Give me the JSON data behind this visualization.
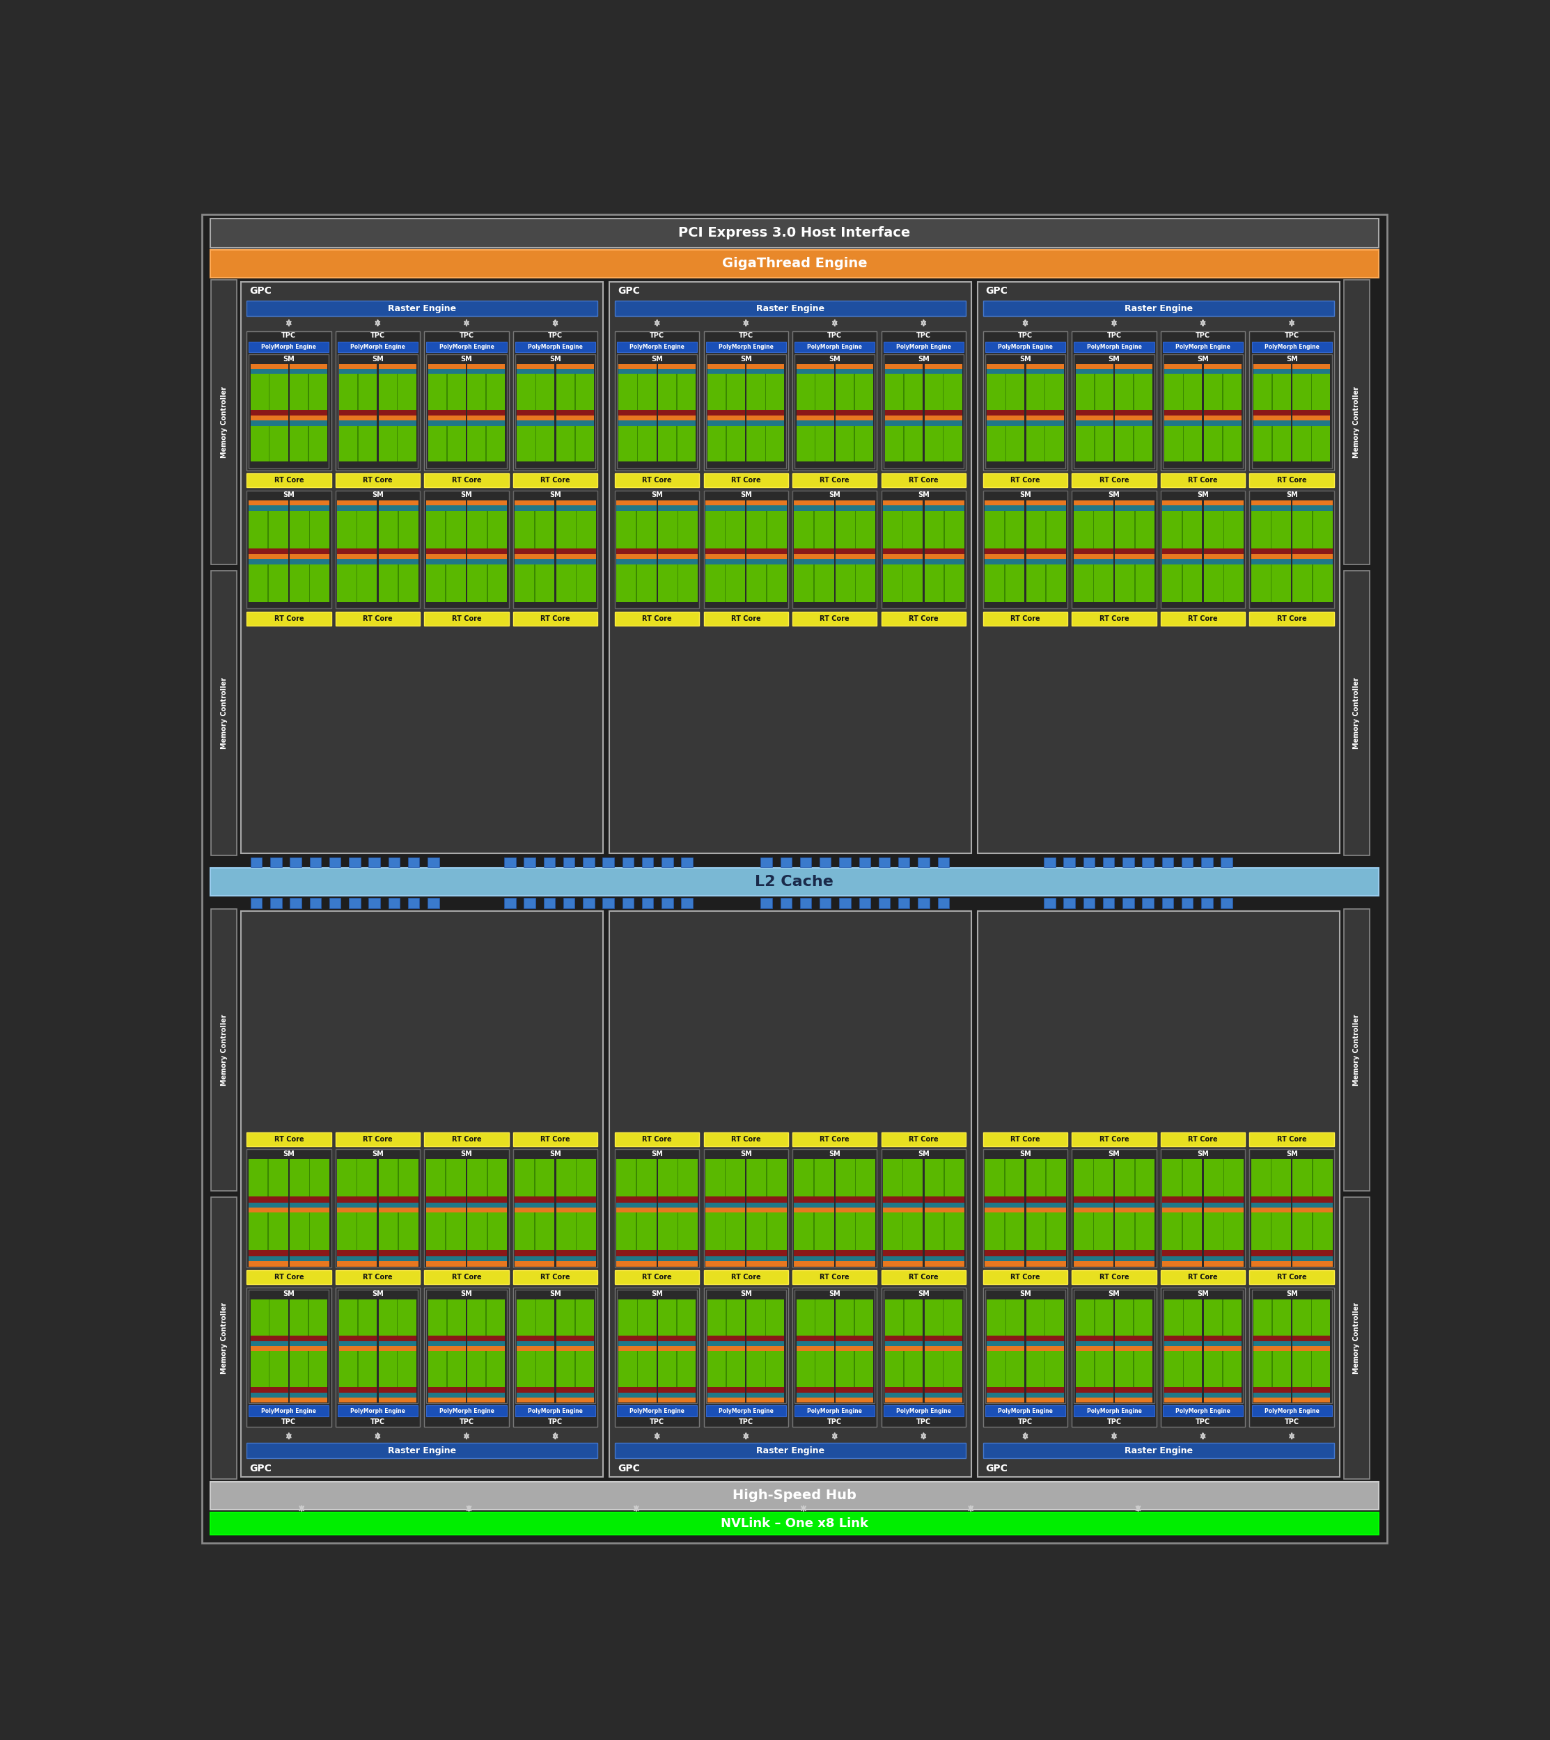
{
  "bg_color": "#2a2a2a",
  "outer_bg": "#1e1e1e",
  "outer_border": "#888888",
  "fig_width": 22.26,
  "fig_height": 25.0,
  "pci_label": "PCI Express 3.0 Host Interface",
  "pci_color": "#484848",
  "pci_border": "#aaaaaa",
  "giga_label": "GigaThread Engine",
  "giga_color": "#e8882a",
  "giga_border": "#ffaa55",
  "l2_label": "L2 Cache",
  "l2_color": "#7ab8d4",
  "l2_border": "#99ccee",
  "hs_label": "High-Speed Hub",
  "hs_color": "#aaaaaa",
  "hs_border": "#cccccc",
  "nv_label": "NVLink – One x8 Link",
  "nv_color": "#00ee00",
  "nv_border": "#00ff00",
  "mc_color": "#383838",
  "mc_border": "#888888",
  "mc_label": "Memory Controller",
  "gpc_color": "#383838",
  "gpc_border": "#aaaaaa",
  "gpc_label": "GPC",
  "re_color": "#1e4fa0",
  "re_border": "#4477cc",
  "re_label": "Raster Engine",
  "tpc_color": "#2a2a2a",
  "tpc_border": "#777777",
  "tpc_label": "TPC",
  "pm_color": "#1a50b8",
  "pm_border": "#3366cc",
  "pm_label": "PolyMorph Engine",
  "sm_color": "#2a2a2a",
  "sm_border": "#666666",
  "sm_label": "SM",
  "rt_color": "#e8e020",
  "rt_border": "#ffee44",
  "rt_label": "RT Core",
  "sm_orange": "#e87820",
  "sm_teal": "#207888",
  "sm_green": "#5ab800",
  "sm_green_dark": "#3a8800",
  "sm_red": "#8a1818",
  "blue_conn": "#3a7acc",
  "blue_conn_border": "#2255aa",
  "arrow_color": "#cccccc",
  "text_white": "#ffffff",
  "text_dark": "#111111"
}
